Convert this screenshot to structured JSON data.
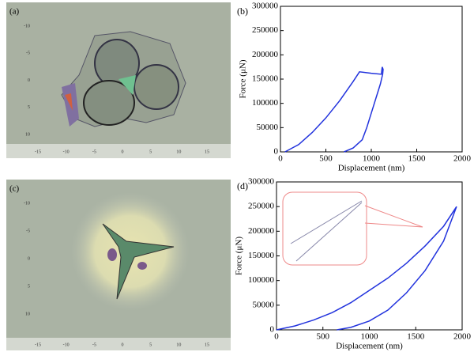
{
  "images": [
    {
      "label": "(a)",
      "x_labels": [
        "-15",
        "-10",
        "-5",
        "0",
        "5",
        "10",
        "15"
      ],
      "y_labels": [
        "-10",
        "-5",
        "0",
        "5",
        "10"
      ]
    },
    {
      "label": "(c)",
      "x_labels": [
        "-15",
        "-10",
        "-5",
        "0",
        "5",
        "10",
        "15"
      ],
      "y_labels": [
        "-10",
        "-5",
        "0",
        "5",
        "10"
      ]
    }
  ],
  "chart_data": [
    {
      "type": "line",
      "title": "(b)",
      "x_label": "Displacement (nm)",
      "y_label": "Force (μN)",
      "x": [
        50,
        200,
        350,
        500,
        650,
        800,
        870,
        1000,
        1110,
        1120,
        1130,
        1125,
        1100,
        1050,
        1000,
        950,
        900,
        800,
        700
      ],
      "series": [
        {
          "color": "#2233dd",
          "values": [
            0,
            15000,
            40000,
            70000,
            105000,
            145000,
            165000,
            162000,
            160000,
            175000,
            170000,
            160000,
            140000,
            110000,
            80000,
            50000,
            25000,
            8000,
            0
          ]
        }
      ],
      "xlim": [
        0,
        2000
      ],
      "xticks": [
        0,
        500,
        1000,
        1500,
        2000
      ],
      "ylim": [
        0,
        300000
      ],
      "yticks": [
        0,
        50000,
        100000,
        150000,
        200000,
        250000,
        300000
      ]
    },
    {
      "type": "line",
      "title": "(d)",
      "x_label": "Displacement (nm)",
      "y_label": "Force (μN)",
      "x": [
        0,
        200,
        400,
        600,
        800,
        1000,
        1200,
        1400,
        1600,
        1800,
        1940,
        1900,
        1800,
        1600,
        1400,
        1200,
        1000,
        800,
        650
      ],
      "series": [
        {
          "color": "#2233dd",
          "values": [
            0,
            8000,
            20000,
            35000,
            55000,
            80000,
            105000,
            135000,
            170000,
            210000,
            250000,
            230000,
            180000,
            120000,
            75000,
            40000,
            18000,
            5000,
            0
          ]
        }
      ],
      "xlim": [
        0,
        2000
      ],
      "xticks": [
        0,
        500,
        1000,
        1500,
        2000
      ],
      "ylim": [
        0,
        300000
      ],
      "yticks": [
        0,
        50000,
        100000,
        150000,
        200000,
        250000,
        300000
      ]
    }
  ]
}
